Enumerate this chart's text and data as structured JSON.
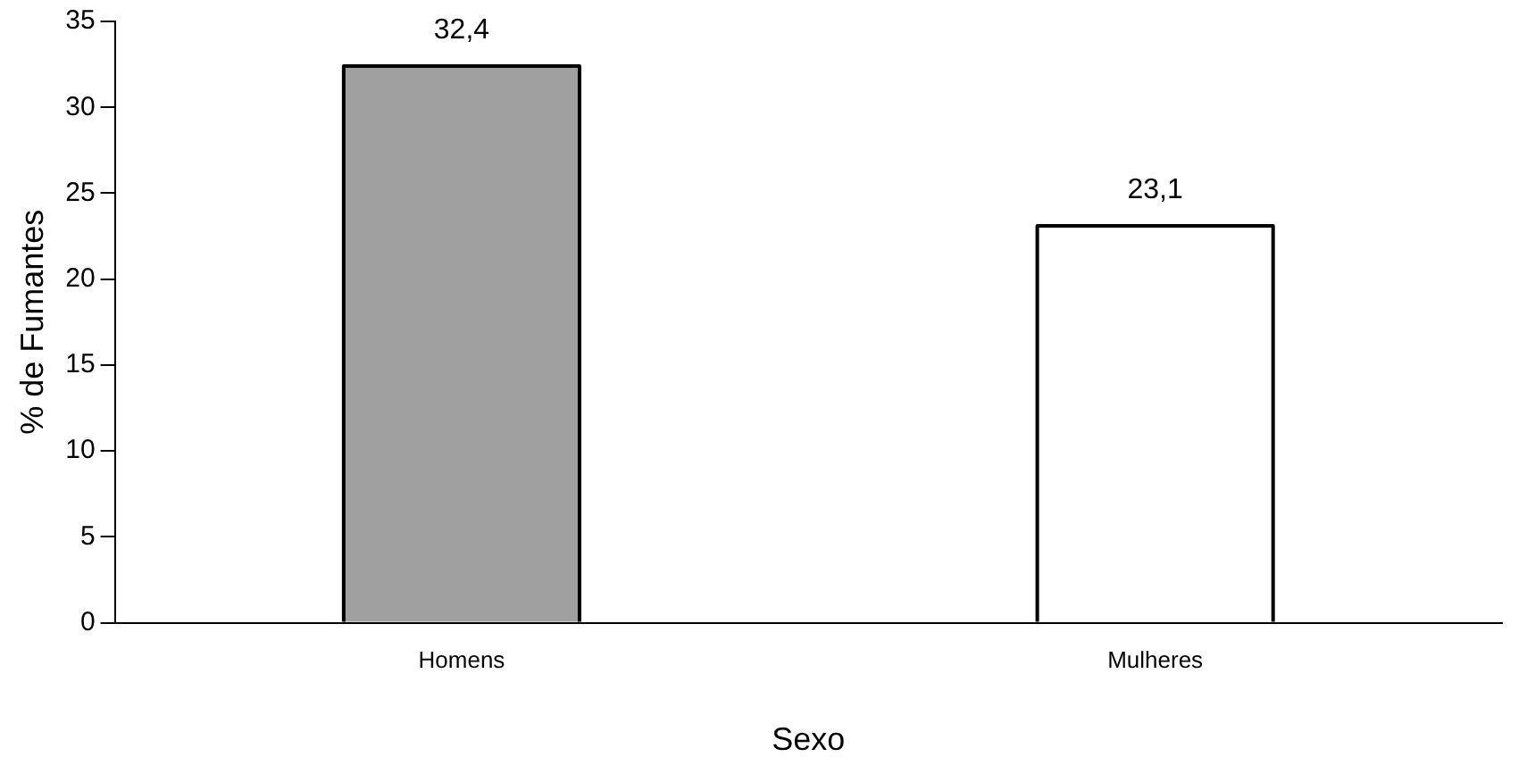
{
  "chart_data": {
    "type": "bar",
    "xlabel": "Sexo",
    "ylabel": "% de Fumantes",
    "categories": [
      "Homens",
      "Mulheres"
    ],
    "values": [
      32.4,
      23.1
    ],
    "colors": [
      "#a0a0a0",
      "#ffffff"
    ],
    "value_labels": [
      "32,4",
      "23,1"
    ],
    "ylim": [
      0,
      35
    ],
    "yticks": [
      0,
      5,
      10,
      15,
      20,
      25,
      30,
      35
    ],
    "grid": false,
    "legend": false
  }
}
